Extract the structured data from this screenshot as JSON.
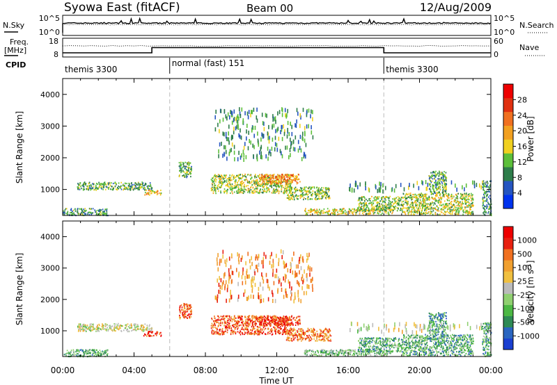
{
  "header": {
    "title": "Syowa East (fitACF)",
    "beam": "Beam 00",
    "date": "12/Aug/2009"
  },
  "noise_panel": {
    "left_label": "N.Sky",
    "right_label": "N.Search",
    "left_ticks": [
      "10^5",
      "10^0"
    ],
    "right_ticks": [
      "10^5",
      "10^0"
    ]
  },
  "freq_panel": {
    "left_label_1": "Freq.",
    "left_label_2": "[MHz]",
    "right_label": "Nave",
    "left_ticks": [
      "18",
      "8"
    ],
    "right_ticks": [
      "60",
      "0"
    ],
    "freq_steps": [
      {
        "start_ut": 0.0,
        "end_ut": 5.0,
        "value": 10.0
      },
      {
        "start_ut": 5.0,
        "end_ut": 18.0,
        "value": 13.0
      },
      {
        "start_ut": 18.0,
        "end_ut": 24.0,
        "value": 10.0
      }
    ]
  },
  "cpid": {
    "label": "CPID",
    "segments": [
      {
        "name": "themis 3300",
        "start_ut": 0.0,
        "end_ut": 6.0
      },
      {
        "name": "normal (fast) 151",
        "start_ut": 6.0,
        "end_ut": 18.0
      },
      {
        "name": "themis 3300",
        "start_ut": 18.0,
        "end_ut": 24.0
      }
    ]
  },
  "chart_data": [
    {
      "type": "heatmap",
      "quantity": "power",
      "ylabel": "Slant Range [km]",
      "ylim": [
        180,
        4500
      ],
      "yticks": [
        "1000",
        "2000",
        "3000",
        "4000"
      ],
      "xlim": [
        0,
        24
      ],
      "colorbar": {
        "label": "Power [dB]",
        "ticks": [
          "4",
          "8",
          "12",
          "16",
          "20",
          "24",
          "28"
        ],
        "colors": [
          "#0033ee",
          "#2555c0",
          "#2e7d4a",
          "#5cbf3a",
          "#f0d020",
          "#f2a020",
          "#f07020",
          "#e03010",
          "#ee0000"
        ]
      },
      "regions": [
        {
          "t_start": 0.0,
          "t_end": 2.5,
          "r_min": 200,
          "r_max": 420,
          "level": 0.3
        },
        {
          "t_start": 0.8,
          "t_end": 5.0,
          "r_min": 1000,
          "r_max": 1250,
          "level": 0.35
        },
        {
          "t_start": 4.5,
          "t_end": 5.5,
          "r_min": 850,
          "r_max": 1000,
          "level": 0.55
        },
        {
          "t_start": 6.5,
          "t_end": 7.2,
          "r_min": 1400,
          "r_max": 1900,
          "level": 0.35
        },
        {
          "t_start": 8.3,
          "t_end": 12.8,
          "r_min": 900,
          "r_max": 1500,
          "level": 0.45
        },
        {
          "t_start": 11.0,
          "t_end": 13.3,
          "r_min": 1200,
          "r_max": 1500,
          "level": 0.65
        },
        {
          "t_start": 12.5,
          "t_end": 15.0,
          "r_min": 700,
          "r_max": 1100,
          "level": 0.4
        },
        {
          "t_start": 13.5,
          "t_end": 18.5,
          "r_min": 220,
          "r_max": 420,
          "level": 0.5
        },
        {
          "t_start": 16.5,
          "t_end": 19.0,
          "r_min": 350,
          "r_max": 800,
          "level": 0.4
        },
        {
          "t_start": 19.0,
          "t_end": 23.0,
          "r_min": 220,
          "r_max": 900,
          "level": 0.45
        },
        {
          "t_start": 20.5,
          "t_end": 21.5,
          "r_min": 900,
          "r_max": 1600,
          "level": 0.35
        },
        {
          "t_start": 8.5,
          "t_end": 14.0,
          "r_min": 2000,
          "r_max": 3600,
          "level": 0.3,
          "sparse": true
        },
        {
          "t_start": 16.0,
          "t_end": 23.5,
          "r_min": 1000,
          "r_max": 1300,
          "level": 0.3,
          "sparse": true
        },
        {
          "t_start": 23.5,
          "t_end": 24.0,
          "r_min": 200,
          "r_max": 1300,
          "level": 0.3
        }
      ]
    },
    {
      "type": "heatmap",
      "quantity": "velocity",
      "ylabel": "Slant Range [km]",
      "ylim": [
        180,
        4500
      ],
      "yticks": [
        "1000",
        "2000",
        "3000",
        "4000"
      ],
      "xlim": [
        0,
        24
      ],
      "xticks": [
        "00:00",
        "04:00",
        "08:00",
        "12:00",
        "16:00",
        "20:00",
        "00:00"
      ],
      "xlabel": "Time UT",
      "colorbar": {
        "label": "Velocity [m s",
        "label_sup": "-1",
        "label_end": "]",
        "ticks": [
          "1000",
          "500",
          "100",
          "25",
          "-25",
          "-100",
          "-500",
          "-1000"
        ],
        "colors": [
          "#1a3fd0",
          "#2a65c0",
          "#2e8a55",
          "#4cb844",
          "#90d070",
          "#bbbbbb",
          "#f0c040",
          "#f0a030",
          "#f07020",
          "#e82010",
          "#ee0000"
        ]
      },
      "regions": [
        {
          "t_start": 0.0,
          "t_end": 2.5,
          "r_min": 200,
          "r_max": 420,
          "level": 0.3
        },
        {
          "t_start": 0.8,
          "t_end": 5.0,
          "r_min": 1000,
          "r_max": 1250,
          "level": 0.5
        },
        {
          "t_start": 4.5,
          "t_end": 5.5,
          "r_min": 850,
          "r_max": 1000,
          "level": 0.85
        },
        {
          "t_start": 6.5,
          "t_end": 7.2,
          "r_min": 1400,
          "r_max": 1900,
          "level": 0.8
        },
        {
          "t_start": 8.3,
          "t_end": 12.8,
          "r_min": 900,
          "r_max": 1500,
          "level": 0.8
        },
        {
          "t_start": 11.0,
          "t_end": 13.3,
          "r_min": 1200,
          "r_max": 1500,
          "level": 0.85
        },
        {
          "t_start": 12.5,
          "t_end": 15.0,
          "r_min": 700,
          "r_max": 1100,
          "level": 0.75
        },
        {
          "t_start": 13.5,
          "t_end": 18.5,
          "r_min": 220,
          "r_max": 420,
          "level": 0.35
        },
        {
          "t_start": 16.5,
          "t_end": 19.0,
          "r_min": 350,
          "r_max": 800,
          "level": 0.3
        },
        {
          "t_start": 19.0,
          "t_end": 23.0,
          "r_min": 220,
          "r_max": 900,
          "level": 0.3
        },
        {
          "t_start": 20.5,
          "t_end": 21.5,
          "r_min": 900,
          "r_max": 1600,
          "level": 0.25
        },
        {
          "t_start": 8.5,
          "t_end": 14.0,
          "r_min": 2000,
          "r_max": 3600,
          "level": 0.7,
          "sparse": true
        },
        {
          "t_start": 16.0,
          "t_end": 23.5,
          "r_min": 1000,
          "r_max": 1300,
          "level": 0.5,
          "sparse": true
        },
        {
          "t_start": 23.5,
          "t_end": 24.0,
          "r_min": 200,
          "r_max": 1300,
          "level": 0.3
        }
      ]
    }
  ]
}
